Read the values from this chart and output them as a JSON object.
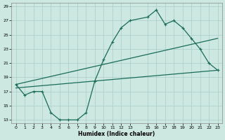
{
  "xlabel": "Humidex (Indice chaleur)",
  "bg_color": "#cce8e0",
  "grid_color": "#aacec8",
  "line_color": "#1a6b5a",
  "xlim": [
    -0.5,
    23.5
  ],
  "ylim": [
    12.5,
    29.5
  ],
  "xticks": [
    0,
    1,
    2,
    3,
    4,
    5,
    6,
    7,
    8,
    9,
    10,
    11,
    12,
    13,
    15,
    16,
    17,
    18,
    19,
    20,
    21,
    22,
    23
  ],
  "yticks": [
    13,
    15,
    17,
    19,
    21,
    23,
    25,
    27,
    29
  ],
  "line1_x": [
    0,
    1,
    2,
    3,
    4,
    5,
    6,
    7,
    8,
    9,
    10,
    11,
    12,
    13,
    15,
    16,
    17,
    18,
    19,
    20,
    21,
    22,
    23
  ],
  "line1_y": [
    18,
    16.5,
    17,
    17,
    14,
    13,
    13,
    13,
    14,
    18.5,
    21.5,
    24,
    26,
    27,
    27.5,
    28.5,
    26.5,
    27,
    26,
    24.5,
    23,
    21,
    20
  ],
  "line2_x": [
    0,
    23
  ],
  "line2_y": [
    17.5,
    20
  ],
  "line3_x": [
    0,
    23
  ],
  "line3_y": [
    18,
    24.5
  ],
  "marker_x1": [
    0,
    1,
    2,
    3,
    4,
    5,
    6,
    7,
    8,
    9,
    10,
    11,
    12,
    13,
    15,
    16,
    17,
    18,
    19,
    20,
    21,
    22,
    23
  ],
  "marker_y1": [
    18,
    16.5,
    17,
    17,
    14,
    13,
    13,
    13,
    14,
    18.5,
    21.5,
    24,
    26,
    27,
    27.5,
    28.5,
    26.5,
    27,
    26,
    24.5,
    23,
    21,
    20
  ]
}
